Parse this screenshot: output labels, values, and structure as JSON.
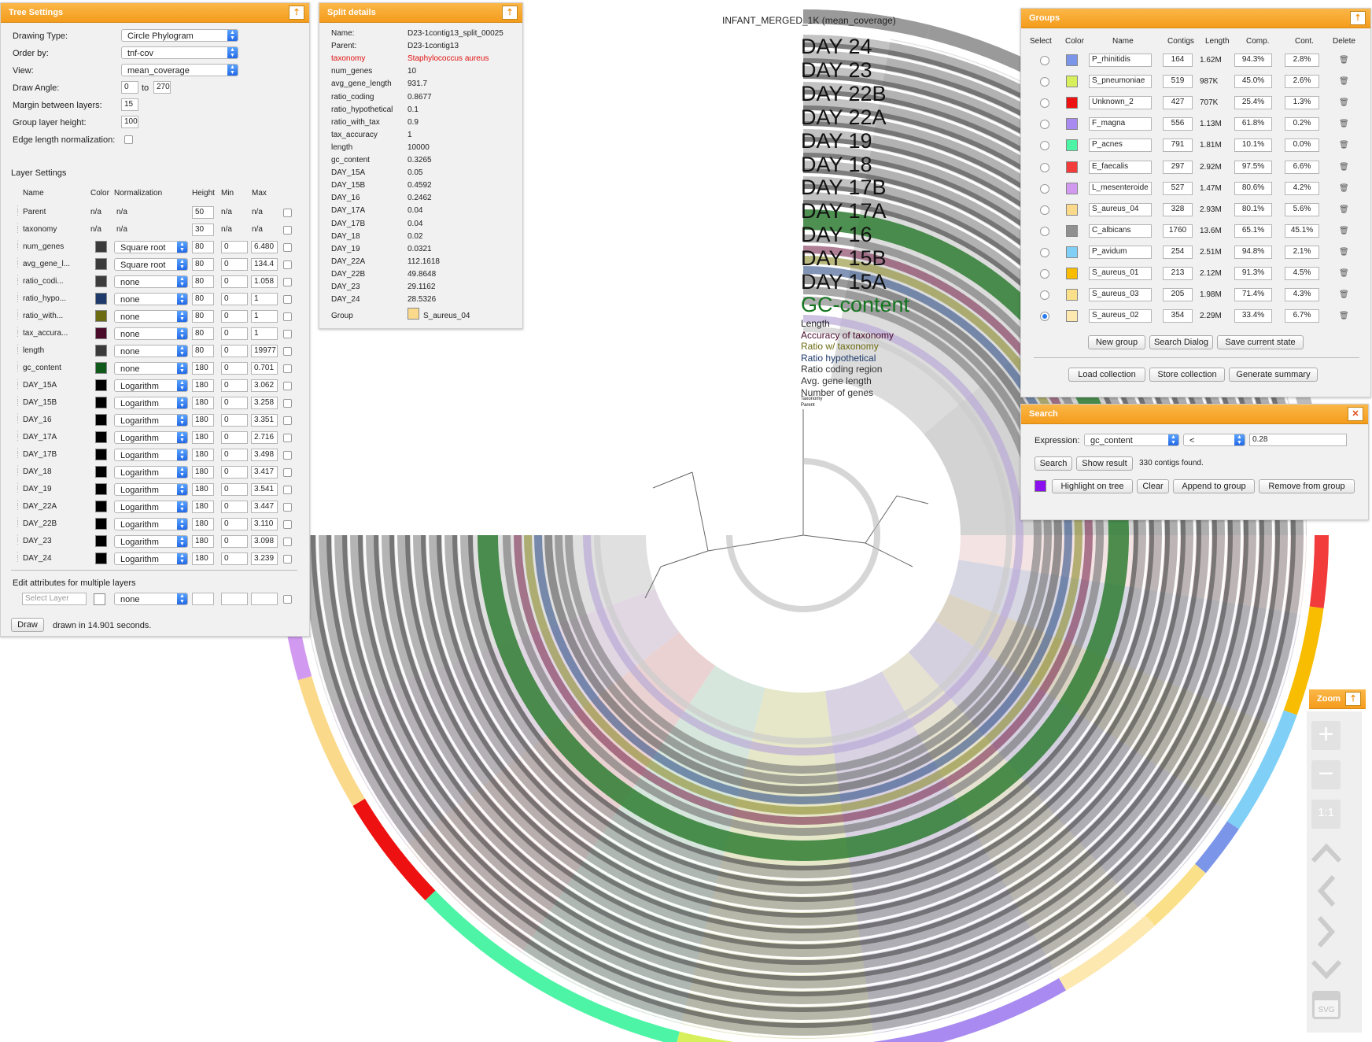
{
  "tree_settings": {
    "title": "Tree Settings",
    "drawing_type_label": "Drawing Type:",
    "drawing_type": "Circle Phylogram",
    "order_by_label": "Order by:",
    "order_by": "tnf-cov",
    "view_label": "View:",
    "view": "mean_coverage",
    "draw_angle_label": "Draw Angle:",
    "draw_angle_from": "0",
    "draw_angle_to_label": "to",
    "draw_angle_to": "270",
    "margin_label": "Margin between layers:",
    "margin": "15",
    "group_height_label": "Group layer height:",
    "group_height": "100",
    "edge_norm_label": "Edge length normalization:",
    "layer_settings_label": "Layer Settings",
    "col_name": "Name",
    "col_color": "Color",
    "col_norm": "Normalization",
    "col_height": "Height",
    "col_min": "Min",
    "col_max": "Max",
    "layers": [
      {
        "name": "Parent",
        "color": "n/a",
        "norm": "n/a",
        "height": "50",
        "min": "n/a",
        "max": "n/a",
        "swatch": ""
      },
      {
        "name": "taxonomy",
        "color": "n/a",
        "norm": "n/a",
        "height": "30",
        "min": "n/a",
        "max": "n/a",
        "swatch": ""
      },
      {
        "name": "num_genes",
        "color": "",
        "norm": "Square root",
        "height": "80",
        "min": "0",
        "max": "6.480",
        "swatch": "#3a3a3a"
      },
      {
        "name": "avg_gene_l...",
        "color": "",
        "norm": "Square root",
        "height": "80",
        "min": "0",
        "max": "134.4",
        "swatch": "#3a3a3a"
      },
      {
        "name": "ratio_codi...",
        "color": "",
        "norm": "none",
        "height": "80",
        "min": "0",
        "max": "1.058",
        "swatch": "#3c3c3c"
      },
      {
        "name": "ratio_hypo...",
        "color": "",
        "norm": "none",
        "height": "80",
        "min": "0",
        "max": "1",
        "swatch": "#1d3a6a"
      },
      {
        "name": "ratio_with...",
        "color": "",
        "norm": "none",
        "height": "80",
        "min": "0",
        "max": "1",
        "swatch": "#6b6b12"
      },
      {
        "name": "tax_accura...",
        "color": "",
        "norm": "none",
        "height": "80",
        "min": "0",
        "max": "1",
        "swatch": "#4a0a2a"
      },
      {
        "name": "length",
        "color": "",
        "norm": "none",
        "height": "80",
        "min": "0",
        "max": "19977",
        "swatch": "#3a3a3a"
      },
      {
        "name": "gc_content",
        "color": "",
        "norm": "none",
        "height": "180",
        "min": "0",
        "max": "0.701",
        "swatch": "#0f5a1a"
      },
      {
        "name": "DAY_15A",
        "color": "",
        "norm": "Logarithm",
        "height": "180",
        "min": "0",
        "max": "3.062",
        "swatch": "#000000"
      },
      {
        "name": "DAY_15B",
        "color": "",
        "norm": "Logarithm",
        "height": "180",
        "min": "0",
        "max": "3.258",
        "swatch": "#000000"
      },
      {
        "name": "DAY_16",
        "color": "",
        "norm": "Logarithm",
        "height": "180",
        "min": "0",
        "max": "3.351",
        "swatch": "#000000"
      },
      {
        "name": "DAY_17A",
        "color": "",
        "norm": "Logarithm",
        "height": "180",
        "min": "0",
        "max": "2.716",
        "swatch": "#000000"
      },
      {
        "name": "DAY_17B",
        "color": "",
        "norm": "Logarithm",
        "height": "180",
        "min": "0",
        "max": "3.498",
        "swatch": "#000000"
      },
      {
        "name": "DAY_18",
        "color": "",
        "norm": "Logarithm",
        "height": "180",
        "min": "0",
        "max": "3.417",
        "swatch": "#000000"
      },
      {
        "name": "DAY_19",
        "color": "",
        "norm": "Logarithm",
        "height": "180",
        "min": "0",
        "max": "3.541",
        "swatch": "#000000"
      },
      {
        "name": "DAY_22A",
        "color": "",
        "norm": "Logarithm",
        "height": "180",
        "min": "0",
        "max": "3.447",
        "swatch": "#000000"
      },
      {
        "name": "DAY_22B",
        "color": "",
        "norm": "Logarithm",
        "height": "180",
        "min": "0",
        "max": "3.110",
        "swatch": "#000000"
      },
      {
        "name": "DAY_23",
        "color": "",
        "norm": "Logarithm",
        "height": "180",
        "min": "0",
        "max": "3.098",
        "swatch": "#000000"
      },
      {
        "name": "DAY_24",
        "color": "",
        "norm": "Logarithm",
        "height": "180",
        "min": "0",
        "max": "3.239",
        "swatch": "#000000"
      }
    ],
    "edit_multi_label": "Edit attributes for multiple layers",
    "select_layer_placeholder": "Select Layer",
    "multi_norm": "none",
    "draw_button": "Draw",
    "drawn_status": "drawn in 14.901 seconds."
  },
  "split_details": {
    "title": "Split details",
    "rows": [
      {
        "k": "Name:",
        "v": "D23-1contig13_split_00025",
        "hl": false
      },
      {
        "k": "Parent:",
        "v": "D23-1contig13",
        "hl": false
      },
      {
        "k": "taxonomy",
        "v": "Staphylococcus aureus",
        "hl": true
      },
      {
        "k": "num_genes",
        "v": "10",
        "hl": false
      },
      {
        "k": "avg_gene_length",
        "v": "931.7",
        "hl": false
      },
      {
        "k": "ratio_coding",
        "v": "0.8677",
        "hl": false
      },
      {
        "k": "ratio_hypothetical",
        "v": "0.1",
        "hl": false
      },
      {
        "k": "ratio_with_tax",
        "v": "0.9",
        "hl": false
      },
      {
        "k": "tax_accuracy",
        "v": "1",
        "hl": false
      },
      {
        "k": "length",
        "v": "10000",
        "hl": false
      },
      {
        "k": "gc_content",
        "v": "0.3265",
        "hl": false
      },
      {
        "k": "DAY_15A",
        "v": "0.05",
        "hl": false
      },
      {
        "k": "DAY_15B",
        "v": "0.4592",
        "hl": false
      },
      {
        "k": "DAY_16",
        "v": "0.2462",
        "hl": false
      },
      {
        "k": "DAY_17A",
        "v": "0.04",
        "hl": false
      },
      {
        "k": "DAY_17B",
        "v": "0.04",
        "hl": false
      },
      {
        "k": "DAY_18",
        "v": "0.02",
        "hl": false
      },
      {
        "k": "DAY_19",
        "v": "0.0321",
        "hl": false
      },
      {
        "k": "DAY_22A",
        "v": "112.1618",
        "hl": false
      },
      {
        "k": "DAY_22B",
        "v": "49.8648",
        "hl": false
      },
      {
        "k": "DAY_23",
        "v": "29.1162",
        "hl": false
      },
      {
        "k": "DAY_24",
        "v": "28.5326",
        "hl": false
      }
    ],
    "group_label": "Group",
    "group_value": "S_aureus_04",
    "group_color": "#fad98a"
  },
  "groups": {
    "title": "Groups",
    "col_select": "Select",
    "col_color": "Color",
    "col_name": "Name",
    "col_contigs": "Contigs",
    "col_length": "Length",
    "col_comp": "Comp.",
    "col_cont": "Cont.",
    "col_delete": "Delete",
    "rows": [
      {
        "name": "P_rhinitidis",
        "color": "#7b95e8",
        "contigs": "164",
        "length": "1.62M",
        "comp": "94.3%",
        "cont": "2.8%"
      },
      {
        "name": "S_pneumoniae",
        "color": "#d8ef5c",
        "contigs": "519",
        "length": "987K",
        "comp": "45.0%",
        "cont": "2.6%"
      },
      {
        "name": "Unknown_2",
        "color": "#ee1111",
        "contigs": "427",
        "length": "707K",
        "comp": "25.4%",
        "cont": "1.3%"
      },
      {
        "name": "F_magna",
        "color": "#a88af0",
        "contigs": "556",
        "length": "1.13M",
        "comp": "61.8%",
        "cont": "0.2%"
      },
      {
        "name": "P_acnes",
        "color": "#4ef4a6",
        "contigs": "791",
        "length": "1.81M",
        "comp": "10.1%",
        "cont": "0.0%"
      },
      {
        "name": "E_faecalis",
        "color": "#f23c3c",
        "contigs": "297",
        "length": "2.92M",
        "comp": "97.5%",
        "cont": "6.6%"
      },
      {
        "name": "L_mesenteroide",
        "color": "#d19af0",
        "contigs": "527",
        "length": "1.47M",
        "comp": "80.6%",
        "cont": "4.2%"
      },
      {
        "name": "S_aureus_04",
        "color": "#fad98a",
        "contigs": "328",
        "length": "2.93M",
        "comp": "80.1%",
        "cont": "5.6%"
      },
      {
        "name": "C_albicans",
        "color": "#909090",
        "contigs": "1760",
        "length": "13.6M",
        "comp": "65.1%",
        "cont": "45.1%"
      },
      {
        "name": "P_avidum",
        "color": "#7fcff6",
        "contigs": "254",
        "length": "2.51M",
        "comp": "94.8%",
        "cont": "2.1%"
      },
      {
        "name": "S_aureus_01",
        "color": "#f8bd00",
        "contigs": "213",
        "length": "2.12M",
        "comp": "91.3%",
        "cont": "4.5%"
      },
      {
        "name": "S_aureus_03",
        "color": "#fbe08a",
        "contigs": "205",
        "length": "1.98M",
        "comp": "71.4%",
        "cont": "4.3%"
      },
      {
        "name": "S_aureus_02",
        "color": "#fde8b0",
        "contigs": "354",
        "length": "2.29M",
        "comp": "33.4%",
        "cont": "6.7%"
      }
    ],
    "new_group": "New group",
    "search_dialog": "Search Dialog",
    "save_state": "Save current state",
    "load_collection": "Load collection",
    "store_collection": "Store collection",
    "generate_summary": "Generate summary"
  },
  "search": {
    "title": "Search",
    "close_glyph": "✕",
    "expression_label": "Expression:",
    "field": "gc_content",
    "operator": "<",
    "value": "0.28",
    "search_btn": "Search",
    "show_result_btn": "Show result",
    "result_text": "330 contigs found.",
    "highlight_color": "#8b10f0",
    "highlight_btn": "Highlight on tree",
    "clear_btn": "Clear",
    "append_btn": "Append to group",
    "remove_btn": "Remove from group"
  },
  "zoom": {
    "title": "Zoom",
    "fit_label": "1:1",
    "svg_label": "SVG"
  },
  "viz": {
    "title": "INFANT_MERGED_1K (mean_coverage)",
    "big_labels": [
      "DAY 24",
      "DAY 23",
      "DAY 22B",
      "DAY 22A",
      "DAY 19",
      "DAY 18",
      "DAY 17B",
      "DAY 17A",
      "DAY 16",
      "DAY 15B",
      "DAY 15A"
    ],
    "gc_label": "GC-content",
    "small_labels": [
      {
        "t": "Length",
        "c": "#222222"
      },
      {
        "t": "Accuracy of taxonomy",
        "c": "#4a0a2a"
      },
      {
        "t": "Ratio w/ taxonomy",
        "c": "#6b6b12"
      },
      {
        "t": "Ratio hypothetical",
        "c": "#1d3a6a"
      },
      {
        "t": "Ratio coding region",
        "c": "#333333"
      },
      {
        "t": "Avg. gene length",
        "c": "#333333"
      },
      {
        "t": "Number of genes",
        "c": "#333333"
      }
    ],
    "tiny_labels": [
      "Taxonomy",
      "Parent"
    ]
  }
}
